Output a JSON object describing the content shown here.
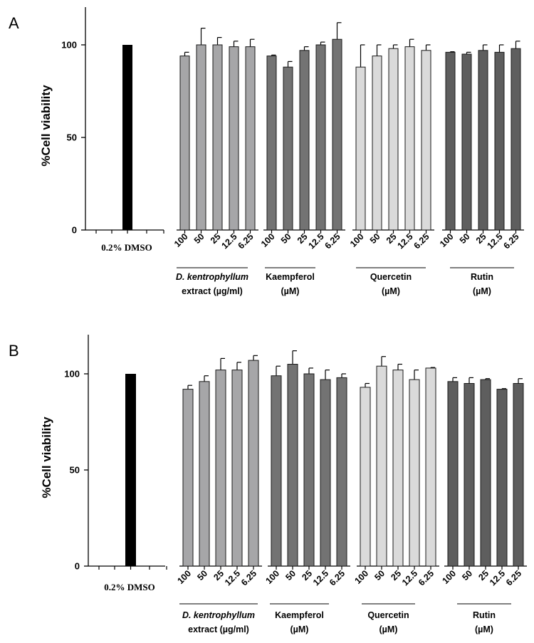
{
  "colors": {
    "control": "#000000",
    "extract": "#a6a6a8",
    "kaempferol": "#737373",
    "quercetin": "#dadada",
    "rutin": "#5e5e5e",
    "axis": "#000000"
  },
  "chart_data": [
    {
      "panel": "A",
      "type": "bar",
      "ylabel": "%Cell viability",
      "ylim": [
        0,
        120
      ],
      "yticks": [
        0,
        50,
        100
      ],
      "control": {
        "label": "0.2% DMSO",
        "value": 100,
        "error": 0
      },
      "groups": [
        {
          "id": "extract",
          "label_italic": "D. kentrophyllum",
          "label_rest": "extract (µg/ml)",
          "categories": [
            "100",
            "50",
            "25",
            "12.5",
            "6.25"
          ],
          "values": [
            94,
            100,
            100,
            99,
            99
          ],
          "errors": [
            2,
            9,
            4,
            3,
            4
          ]
        },
        {
          "id": "kaempferol",
          "label_line1": "Kaempferol",
          "label_line2": "(µM)",
          "categories": [
            "100",
            "50",
            "25",
            "12.5",
            "6.25"
          ],
          "values": [
            94,
            88,
            97,
            100,
            103
          ],
          "errors": [
            0.5,
            3,
            2,
            1.5,
            9
          ]
        },
        {
          "id": "quercetin",
          "label_line1": "Quercetin",
          "label_line2": "(µM)",
          "categories": [
            "100",
            "50",
            "25",
            "12.5",
            "6.25"
          ],
          "values": [
            88,
            94,
            98,
            99,
            97
          ],
          "errors": [
            12,
            6,
            2,
            4,
            3
          ]
        },
        {
          "id": "rutin",
          "label_line1": "Rutin",
          "label_line2": "(µM)",
          "categories": [
            "100",
            "50",
            "25",
            "12.5",
            "6.25"
          ],
          "values": [
            96,
            95,
            97,
            96,
            98
          ],
          "errors": [
            0.3,
            1,
            3,
            4,
            4
          ]
        }
      ]
    },
    {
      "panel": "B",
      "type": "bar",
      "ylabel": "%Cell viability",
      "ylim": [
        0,
        120
      ],
      "yticks": [
        0,
        50,
        100
      ],
      "control": {
        "label": "0.2% DMSO",
        "value": 100,
        "error": 0
      },
      "groups": [
        {
          "id": "extract",
          "label_italic": "D. kentrophyllum",
          "label_rest": "extract (µg/ml)",
          "categories": [
            "100",
            "50",
            "25",
            "12.5",
            "6.25"
          ],
          "values": [
            92,
            96,
            102,
            102,
            107
          ],
          "errors": [
            2,
            3,
            6,
            4,
            2.5
          ]
        },
        {
          "id": "kaempferol",
          "label_line1": "Kaempferol",
          "label_line2": "(µM)",
          "categories": [
            "100",
            "50",
            "25",
            "12.5",
            "6.25"
          ],
          "values": [
            99,
            105,
            100,
            97,
            98
          ],
          "errors": [
            5,
            7,
            3,
            5,
            2
          ]
        },
        {
          "id": "quercetin",
          "label_line1": "Quercetin",
          "label_line2": "(µM)",
          "categories": [
            "100",
            "50",
            "25",
            "12.5",
            "6.25"
          ],
          "values": [
            93,
            104,
            102,
            97,
            103
          ],
          "errors": [
            2,
            5,
            3,
            5,
            0.3
          ]
        },
        {
          "id": "rutin",
          "label_line1": "Rutin",
          "label_line2": "(µM)",
          "categories": [
            "100",
            "50",
            "25",
            "12.5",
            "6.25"
          ],
          "values": [
            96,
            95,
            97,
            92,
            95
          ],
          "errors": [
            2,
            3,
            0.5,
            0.3,
            2.5
          ]
        }
      ]
    }
  ]
}
